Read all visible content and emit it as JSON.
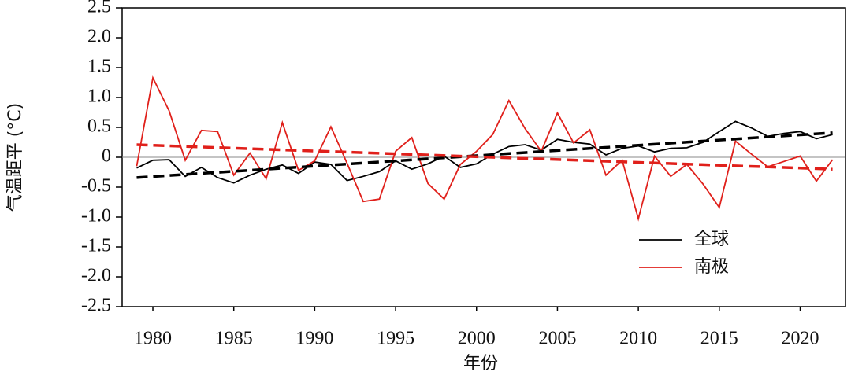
{
  "chart_data": {
    "type": "line",
    "x_label": "年份",
    "y_label": "气温距平 (°C)",
    "x": [
      1979,
      1980,
      1981,
      1982,
      1983,
      1984,
      1985,
      1986,
      1987,
      1988,
      1989,
      1990,
      1991,
      1992,
      1993,
      1994,
      1995,
      1996,
      1997,
      1998,
      1999,
      2000,
      2001,
      2002,
      2003,
      2004,
      2005,
      2006,
      2007,
      2008,
      2009,
      2010,
      2011,
      2012,
      2013,
      2014,
      2015,
      2016,
      2017,
      2018,
      2019,
      2020,
      2021,
      2022
    ],
    "series": [
      {
        "name": "全球",
        "color": "#000000",
        "values": [
          -0.18,
          -0.05,
          -0.04,
          -0.32,
          -0.17,
          -0.34,
          -0.43,
          -0.3,
          -0.2,
          -0.13,
          -0.27,
          -0.08,
          -0.12,
          -0.39,
          -0.32,
          -0.24,
          -0.06,
          -0.2,
          -0.11,
          0.02,
          -0.17,
          -0.11,
          0.05,
          0.18,
          0.21,
          0.12,
          0.3,
          0.25,
          0.22,
          0.04,
          0.15,
          0.19,
          0.09,
          0.15,
          0.16,
          0.25,
          0.43,
          0.6,
          0.49,
          0.35,
          0.4,
          0.43,
          0.31,
          0.38
        ]
      },
      {
        "name": "南极",
        "color": "#e0201b",
        "values": [
          -0.15,
          1.33,
          0.78,
          -0.05,
          0.45,
          0.43,
          -0.3,
          0.07,
          -0.36,
          0.58,
          -0.22,
          -0.06,
          0.51,
          -0.1,
          -0.74,
          -0.7,
          0.1,
          0.33,
          -0.44,
          -0.7,
          -0.12,
          0.1,
          0.38,
          0.95,
          0.48,
          0.1,
          0.74,
          0.24,
          0.46,
          -0.3,
          -0.05,
          -1.03,
          0.02,
          -0.32,
          -0.12,
          -0.45,
          -0.84,
          0.27,
          0.05,
          -0.16,
          -0.07,
          0.02,
          -0.4,
          -0.04
        ]
      }
    ],
    "trend_lines": [
      {
        "color": "#000000",
        "x": [
          1979,
          2022
        ],
        "values": [
          -0.34,
          0.41
        ]
      },
      {
        "color": "#e0201b",
        "x": [
          1979,
          2022
        ],
        "values": [
          0.21,
          -0.2
        ]
      }
    ],
    "reference_line": 0,
    "xlim": [
      1978.1,
      2022.8
    ],
    "xticks": [
      1980,
      1985,
      1990,
      1995,
      2000,
      2005,
      2010,
      2015,
      2020
    ],
    "ylim": [
      -2.5,
      2.5
    ],
    "yticks": [
      2.5,
      {
        "value": 2,
        "label": "2.0"
      },
      1.5,
      {
        "value": 1,
        "label": "1.0"
      },
      0.5,
      0,
      -0.5,
      {
        "value": -1,
        "label": "-1.0"
      },
      -1.5,
      {
        "value": -2,
        "label": "-2.0"
      },
      -2.5
    ],
    "legend": "lower-right"
  }
}
